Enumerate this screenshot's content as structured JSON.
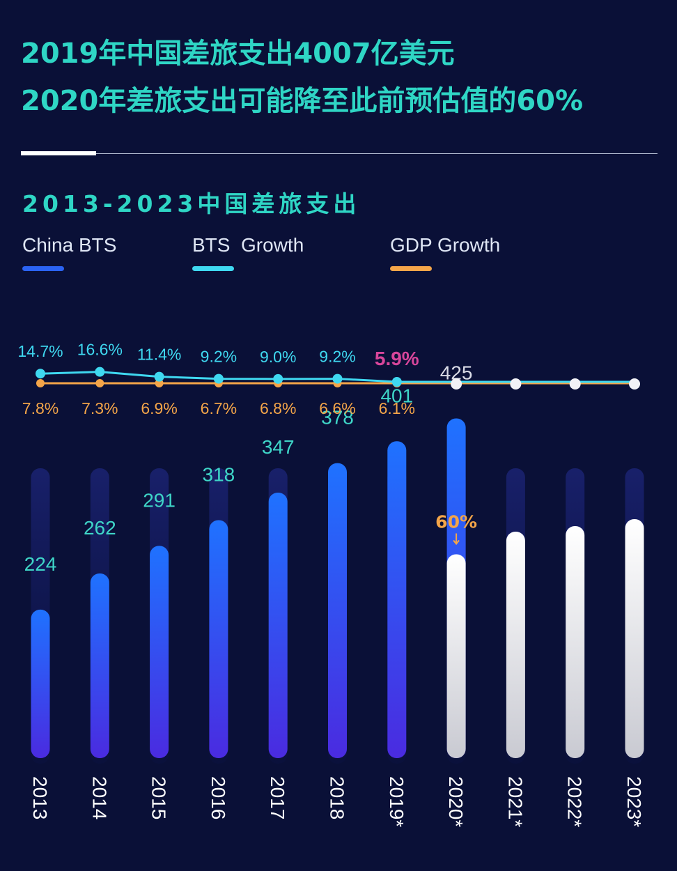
{
  "header": {
    "line1": "2019年中国差旅支出4007亿美元",
    "line2": "2020年差旅支出可能降至此前预估值的60%",
    "subtitle": "2013-2023中国差旅支出"
  },
  "legend": [
    {
      "label": "China BTS",
      "color": "#2b63f2"
    },
    {
      "label": "BTS  Growth",
      "color": "#3fd8f0"
    },
    {
      "label": "GDP Growth",
      "color": "#f4a549"
    }
  ],
  "colors": {
    "bar_top": "#1f72ff",
    "bar_bottom": "#4a2be0",
    "forecast_bar": "#e9e9ee",
    "bts_line": "#3fd8f0",
    "gdp_line": "#f4a549",
    "highlight": "#d8469b",
    "value_label": "#3fd6c8",
    "forecast_label": "#d9dbe6",
    "year_label": "#ffffff"
  },
  "chart_data": {
    "type": "bar",
    "categories": [
      "2013",
      "2014",
      "2015",
      "2016",
      "2017",
      "2018",
      "2019*",
      "2020*",
      "2021*",
      "2022*",
      "2023*"
    ],
    "series": [
      {
        "name": "China BTS",
        "values": [
          224,
          262,
          291,
          318,
          347,
          378,
          401,
          425,
          null,
          null,
          null
        ]
      },
      {
        "name": "BTS  Growth",
        "values": [
          14.7,
          16.6,
          11.4,
          9.2,
          9.0,
          9.2,
          5.9,
          null,
          null,
          null,
          null
        ]
      },
      {
        "name": "GDP Growth",
        "values": [
          7.8,
          7.3,
          6.9,
          6.7,
          6.8,
          6.6,
          6.1,
          null,
          null,
          null,
          null
        ]
      }
    ],
    "bts_labels": [
      "14.7%",
      "16.6%",
      "11.4%",
      "9.2%",
      "9.0%",
      "9.2%",
      "5.9%"
    ],
    "gdp_labels": [
      "7.8%",
      "7.3%",
      "6.9%",
      "6.7%",
      "6.8%",
      "6.6%",
      "6.1%"
    ],
    "bar_labels": [
      "224",
      "262",
      "291",
      "318",
      "347",
      "378",
      "401",
      "425",
      "",
      "",
      ""
    ],
    "forecast_start_index": 7,
    "annotation": {
      "text": "60%",
      "category": "2020*",
      "value_fraction": 0.6
    },
    "title": "2013-2023中国差旅支出",
    "xlabel": "",
    "ylabel": "",
    "legend_position": "top-left",
    "grid": false
  }
}
